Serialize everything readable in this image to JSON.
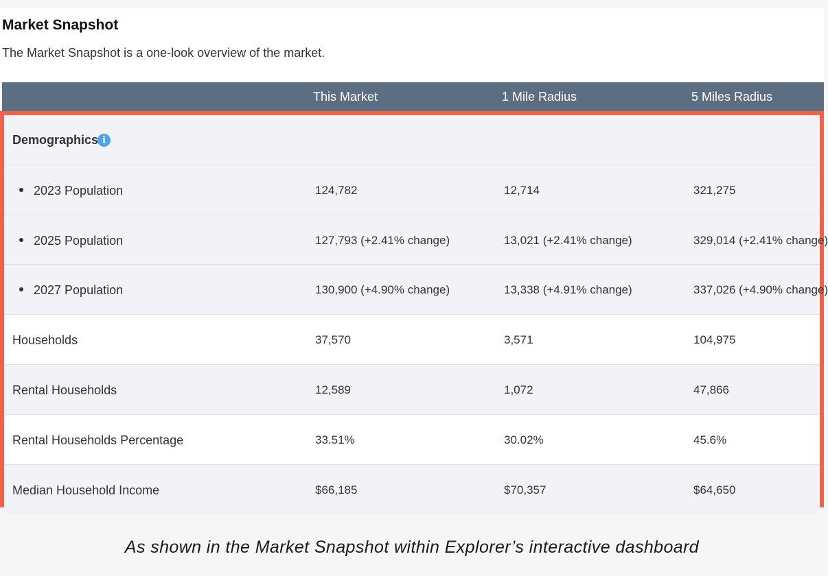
{
  "header": {
    "title": "Market Snapshot",
    "description": "The Market Snapshot is a one-look overview of the market."
  },
  "table": {
    "columns": [
      "",
      "This Market",
      "1 Mile Radius",
      "5 Miles Radius"
    ],
    "group": {
      "label": "Demographics",
      "icon": "info-icon"
    },
    "rows": [
      {
        "label": "2023 Population",
        "values": [
          "124,782",
          "12,714",
          "321,275"
        ]
      },
      {
        "label": "2025 Population",
        "values": [
          "127,793 (+2.41% change)",
          "13,021 (+2.41% change)",
          "329,014 (+2.41% change)"
        ]
      },
      {
        "label": "2027 Population",
        "values": [
          "130,900 (+4.90% change)",
          "13,338 (+4.91% change)",
          "337,026 (+4.90% change)"
        ]
      },
      {
        "label": "Households",
        "values": [
          "37,570",
          "3,571",
          "104,975"
        ]
      },
      {
        "label": "Rental Households",
        "values": [
          "12,589",
          "1,072",
          "47,866"
        ]
      },
      {
        "label": "Rental Households Percentage",
        "values": [
          "33.51%",
          "30.02%",
          "45.6%"
        ]
      },
      {
        "label": "Median Household Income",
        "values": [
          "$66,185",
          "$70,357",
          "$64,650"
        ]
      }
    ]
  },
  "highlight_color": "#f0634a",
  "header_color": "#5b6e82",
  "caption": "As shown in the Market Snapshot within Explorer’s interactive dashboard"
}
